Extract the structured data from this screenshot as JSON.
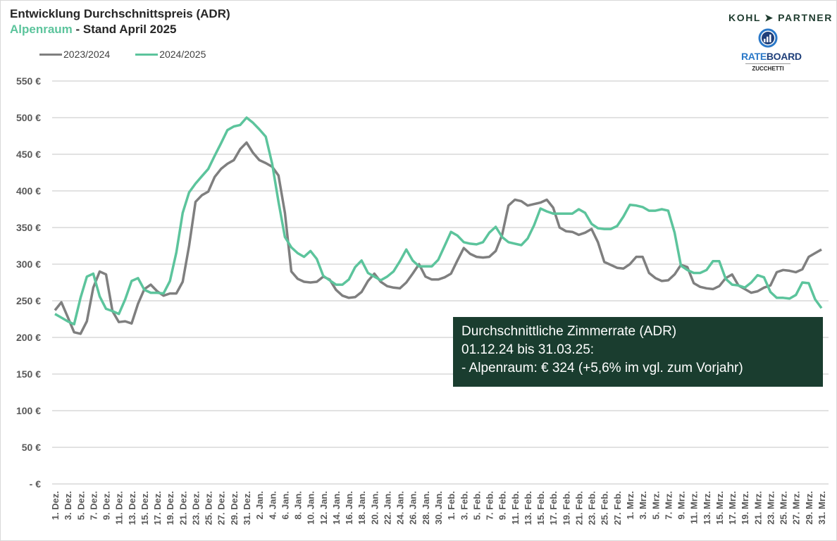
{
  "title": {
    "line1": "Entwicklung Durchschnittspreis (ADR)",
    "region": "Alpenraum",
    "line2_rest": " - Stand April 2025"
  },
  "logos": {
    "kohl_partner": "KOHL ➤ PARTNER",
    "rateboard_a": "RATE",
    "rateboard_b": "BOARD",
    "zucchetti": "ZUCCHETTI"
  },
  "note": {
    "line1": "Durchschnittliche Zimmerrate (ADR)",
    "line2": "01.12.24  bis 31.03.25:",
    "line3": "- Alpenraum:  € 324 (+5,6% im vgl. zum Vorjahr)"
  },
  "chart_data": {
    "type": "line",
    "ylim": [
      0,
      550
    ],
    "y_ticks": [
      0,
      50,
      100,
      150,
      200,
      250,
      300,
      350,
      400,
      450,
      500,
      550
    ],
    "y_tick_labels": [
      "- €",
      "50 €",
      "100 €",
      "150 €",
      "200 €",
      "250 €",
      "300 €",
      "350 €",
      "400 €",
      "450 €",
      "500 €",
      "550 €"
    ],
    "grid": true,
    "legend": "top-left",
    "x_range": [
      "1. Dez.",
      "31. Mrz."
    ],
    "x_tick_labels": [
      "1. Dez.",
      "3. Dez.",
      "5. Dez.",
      "7. Dez.",
      "9. Dez.",
      "11. Dez.",
      "13. Dez.",
      "15. Dez.",
      "17. Dez.",
      "19. Dez.",
      "21. Dez.",
      "23. Dez.",
      "25. Dez.",
      "27. Dez.",
      "29. Dez.",
      "31. Dez.",
      "2. Jan.",
      "4. Jan.",
      "6. Jan.",
      "8. Jan.",
      "10. Jan.",
      "12. Jan.",
      "14. Jan.",
      "16. Jan.",
      "18. Jan.",
      "20. Jan.",
      "22. Jan.",
      "24. Jan.",
      "26. Jan.",
      "28. Jan.",
      "30. Jan.",
      "1. Feb.",
      "3. Feb.",
      "5. Feb.",
      "7. Feb.",
      "9. Feb.",
      "11. Feb.",
      "13. Feb.",
      "15. Feb.",
      "17. Feb.",
      "19. Feb.",
      "21. Feb.",
      "23. Feb.",
      "25. Feb.",
      "27. Feb.",
      "1. Mrz.",
      "3. Mrz.",
      "5. Mrz.",
      "7. Mrz.",
      "9. Mrz.",
      "11. Mrz.",
      "13. Mrz.",
      "15. Mrz.",
      "17. Mrz.",
      "19. Mrz.",
      "21. Mrz.",
      "23. Mrz.",
      "25. Mrz.",
      "27. Mrz.",
      "29. Mrz.",
      "31. Mrz."
    ],
    "series": [
      {
        "name": "2023/2024",
        "color": "#7f7f7f",
        "values": [
          237,
          248,
          228,
          207,
          205,
          222,
          268,
          290,
          286,
          236,
          221,
          222,
          219,
          246,
          266,
          272,
          263,
          257,
          260,
          260,
          276,
          325,
          385,
          394,
          399,
          419,
          430,
          437,
          442,
          457,
          466,
          452,
          442,
          438,
          433,
          421,
          370,
          290,
          280,
          276,
          275,
          276,
          283,
          279,
          265,
          257,
          254,
          255,
          262,
          277,
          287,
          276,
          270,
          268,
          267,
          275,
          287,
          300,
          283,
          279,
          279,
          282,
          287,
          305,
          322,
          314,
          310,
          309,
          310,
          318,
          340,
          380,
          388,
          386,
          380,
          382,
          384,
          388,
          377,
          350,
          345,
          344,
          340,
          343,
          348,
          330,
          303,
          299,
          295,
          294,
          300,
          310,
          310,
          288,
          281,
          277,
          278,
          286,
          299,
          296,
          274,
          269,
          267,
          266,
          270,
          281,
          286,
          271,
          266,
          261,
          263,
          268,
          271,
          289,
          292,
          291,
          289,
          293,
          310,
          315,
          320
        ]
      },
      {
        "name": "2024/2025",
        "color": "#5cc49c",
        "values": [
          232,
          227,
          222,
          218,
          254,
          283,
          287,
          256,
          239,
          236,
          232,
          252,
          277,
          281,
          265,
          261,
          261,
          260,
          277,
          316,
          370,
          398,
          410,
          420,
          430,
          448,
          465,
          483,
          488,
          490,
          500,
          493,
          484,
          474,
          437,
          385,
          337,
          323,
          315,
          310,
          318,
          307,
          284,
          278,
          272,
          272,
          279,
          296,
          305,
          288,
          283,
          278,
          283,
          290,
          304,
          320,
          305,
          297,
          297,
          297,
          306,
          325,
          344,
          339,
          330,
          328,
          327,
          330,
          343,
          351,
          337,
          330,
          328,
          326,
          335,
          353,
          376,
          372,
          369,
          369,
          369,
          369,
          375,
          370,
          355,
          349,
          348,
          348,
          352,
          365,
          381,
          380,
          378,
          373,
          373,
          375,
          373,
          343,
          298,
          292,
          288,
          288,
          292,
          304,
          304,
          280,
          272,
          271,
          268,
          275,
          285,
          282,
          262,
          254,
          254,
          253,
          258,
          275,
          274,
          252,
          240
        ]
      }
    ]
  }
}
